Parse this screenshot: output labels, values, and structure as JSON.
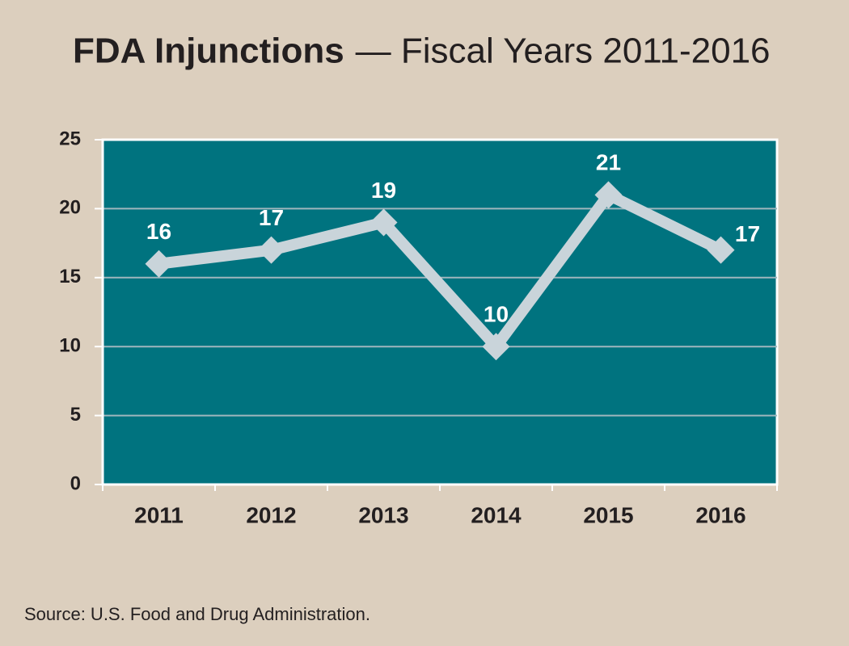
{
  "chart_data": {
    "type": "line",
    "title": "FDA Injunctions",
    "subtitle": "— Fiscal Years 2011-2016",
    "categories": [
      "2011",
      "2012",
      "2013",
      "2014",
      "2015",
      "2016"
    ],
    "values": [
      16,
      17,
      19,
      10,
      21,
      17
    ],
    "color": "#c9d4da",
    "ylim": [
      0,
      25
    ],
    "yticks": [
      0,
      5,
      10,
      15,
      20,
      25
    ],
    "grid": true,
    "source": "Source: U.S. Food and Drug Administration."
  }
}
